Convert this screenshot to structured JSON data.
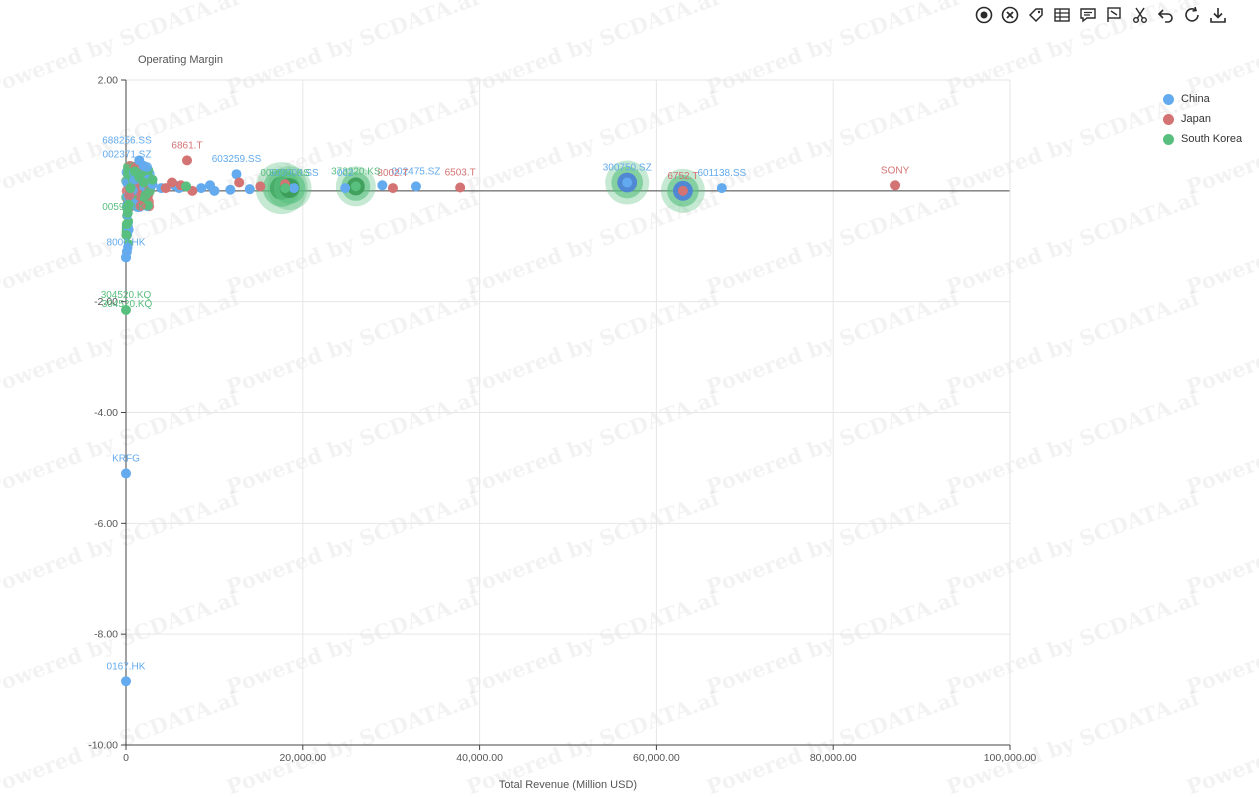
{
  "toolbar": [
    {
      "name": "focus-icon"
    },
    {
      "name": "clear-icon"
    },
    {
      "name": "tag-icon"
    },
    {
      "name": "table-icon"
    },
    {
      "name": "comment-icon"
    },
    {
      "name": "flag-icon"
    },
    {
      "name": "scissors-icon"
    },
    {
      "name": "undo-icon"
    },
    {
      "name": "refresh-icon"
    },
    {
      "name": "download-icon"
    }
  ],
  "watermark": "Powered by SCDATA.ai",
  "chart_data": {
    "type": "scatter",
    "title": "",
    "xlabel": "Total Revenue (Million USD)",
    "ylabel": "Operating Margin",
    "xlim": [
      0,
      100000
    ],
    "ylim": [
      -10,
      2
    ],
    "x_ticks": [
      "0",
      "20,000.00",
      "40,000.00",
      "60,000.00",
      "80,000.00",
      "100,000.00"
    ],
    "y_ticks": [
      "2.00",
      "-2.00",
      "-4.00",
      "-6.00",
      "-8.00",
      "-10.00"
    ],
    "grid": true,
    "legend_position": "top-right",
    "colors": {
      "China": "#63abee",
      "Japan": "#d47373",
      "South Korea": "#58bf7e"
    },
    "series": [
      {
        "name": "China",
        "points": [
          {
            "x": 1500,
            "y": 0.55
          },
          {
            "x": 2000,
            "y": 0.45
          },
          {
            "x": 2500,
            "y": 0.2
          },
          {
            "x": 3000,
            "y": 0.12
          },
          {
            "x": 4000,
            "y": 0.05
          },
          {
            "x": 5500,
            "y": 0.1
          },
          {
            "x": 6000,
            "y": 0.05
          },
          {
            "x": 8500,
            "y": 0.05
          },
          {
            "x": 9500,
            "y": 0.1
          },
          {
            "x": 10000,
            "y": 0.0
          },
          {
            "x": 11800,
            "y": 0.02
          },
          {
            "x": 14000,
            "y": 0.03
          },
          {
            "x": 300,
            "y": -0.7
          },
          {
            "x": 100,
            "y": -1.1
          },
          {
            "x": 0,
            "y": -1.2
          },
          {
            "x": 29000,
            "y": 0.1
          },
          {
            "x": 24800,
            "y": 0.05,
            "label": "002"
          },
          {
            "x": 32800,
            "y": 0.08,
            "label": "002475.SZ"
          },
          {
            "x": 56700,
            "y": 0.15,
            "label": "300750.SZ"
          },
          {
            "x": 67400,
            "y": 0.05,
            "label": "601138.SS"
          },
          {
            "x": 19000,
            "y": 0.05,
            "label": "600000.SS"
          },
          {
            "x": 12500,
            "y": 0.3,
            "label": "603259.SS"
          },
          {
            "x": 0,
            "y": -1.2,
            "label": "8000.HK"
          },
          {
            "x": 0,
            "y": -5.1,
            "label": "KRFG"
          },
          {
            "x": 0,
            "y": -8.85,
            "label": "0167.HK"
          }
        ]
      },
      {
        "name": "Japan",
        "points": [
          {
            "x": 4500,
            "y": 0.05
          },
          {
            "x": 5200,
            "y": 0.15
          },
          {
            "x": 6200,
            "y": 0.1
          },
          {
            "x": 7500,
            "y": 0.0
          },
          {
            "x": 12800,
            "y": 0.15
          },
          {
            "x": 15200,
            "y": 0.08
          },
          {
            "x": 18000,
            "y": 0.12
          },
          {
            "x": 6900,
            "y": 0.55,
            "label": "6861.T"
          },
          {
            "x": 30200,
            "y": 0.05,
            "label": "8002.T"
          },
          {
            "x": 37800,
            "y": 0.06,
            "label": "6503.T"
          },
          {
            "x": 63000,
            "y": 0.0,
            "label": "6752.T"
          },
          {
            "x": 87000,
            "y": 0.1,
            "label": "SONY"
          }
        ]
      },
      {
        "name": "South Korea",
        "points": [
          {
            "x": 1000,
            "y": 0.35
          },
          {
            "x": 1500,
            "y": 0.25
          },
          {
            "x": 2000,
            "y": 0.15
          },
          {
            "x": 500,
            "y": 0.05
          },
          {
            "x": 300,
            "y": -0.25
          },
          {
            "x": 200,
            "y": -0.4
          },
          {
            "x": 100,
            "y": -0.6
          },
          {
            "x": 50,
            "y": -0.8
          },
          {
            "x": 3000,
            "y": 0.2
          },
          {
            "x": 6800,
            "y": 0.08
          },
          {
            "x": 18000,
            "y": 0.05,
            "label": "000660.KS"
          },
          {
            "x": 26000,
            "y": 0.08,
            "label": "373220.KS"
          },
          {
            "x": 0,
            "y": -2.15,
            "label": "304520.KQ"
          }
        ]
      }
    ],
    "bubbles": [
      {
        "x": 17600,
        "y": 0.05,
        "size": 26,
        "fill": "#58bf7e",
        "inner": "#3a9b55"
      },
      {
        "x": 18500,
        "y": 0.05,
        "size": 22,
        "fill": "#58bf7e",
        "inner": "#3a9b55"
      },
      {
        "x": 26000,
        "y": 0.08,
        "size": 20,
        "fill": "#58bf7e",
        "inner": "#3a9b55"
      },
      {
        "x": 56700,
        "y": 0.15,
        "size": 22,
        "fill": "#58bf7e",
        "inner": "#4a7fd8"
      },
      {
        "x": 63000,
        "y": 0.0,
        "size": 22,
        "fill": "#58bf7e",
        "inner": "#4a7fd8"
      }
    ],
    "extra_labels": [
      {
        "x": 0,
        "y": 0.85,
        "text": "688256.SS",
        "color": "#63abee"
      },
      {
        "x": 0,
        "y": 0.6,
        "text": "002371.SZ",
        "color": "#63abee"
      },
      {
        "x": 0,
        "y": -0.35,
        "text": "005930.KS",
        "color": "#58bf7e"
      },
      {
        "x": 0,
        "y": -2.1,
        "text": "304520.KQ",
        "color": "#58bf7e"
      }
    ]
  }
}
